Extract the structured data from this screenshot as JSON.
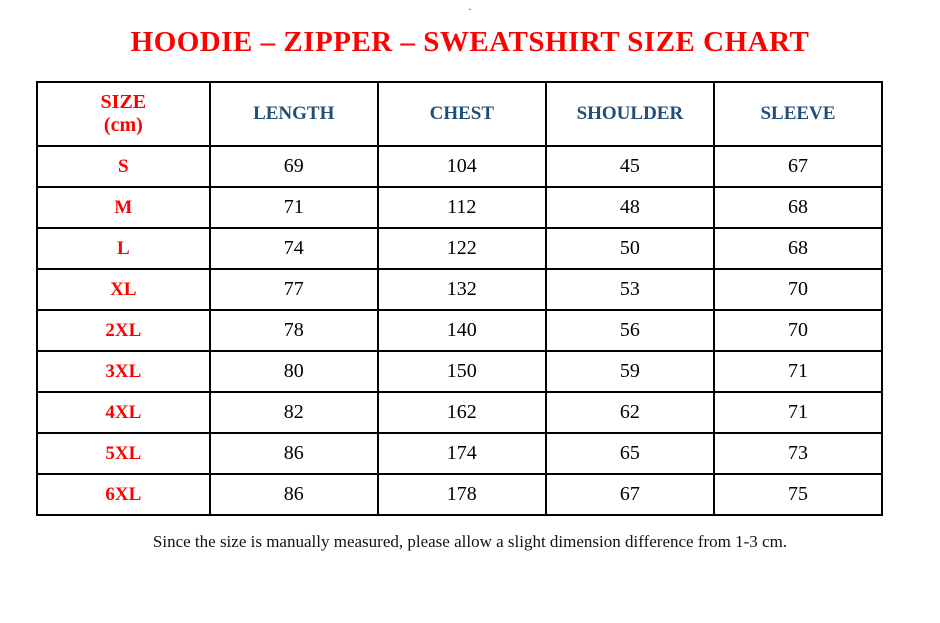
{
  "top_mark": ".",
  "title": "HOODIE – ZIPPER – SWEATSHIRT SIZE CHART",
  "table": {
    "header": {
      "size_label": "SIZE",
      "size_unit": "(cm)",
      "columns": [
        "LENGTH",
        "CHEST",
        "SHOULDER",
        "SLEEVE"
      ]
    },
    "rows": [
      {
        "size": "S",
        "values": [
          69,
          104,
          45,
          67
        ]
      },
      {
        "size": "M",
        "values": [
          71,
          112,
          48,
          68
        ]
      },
      {
        "size": "L",
        "values": [
          74,
          122,
          50,
          68
        ]
      },
      {
        "size": "XL",
        "values": [
          77,
          132,
          53,
          70
        ]
      },
      {
        "size": "2XL",
        "values": [
          78,
          140,
          56,
          70
        ]
      },
      {
        "size": "3XL",
        "values": [
          80,
          150,
          59,
          71
        ]
      },
      {
        "size": "4XL",
        "values": [
          82,
          162,
          62,
          71
        ]
      },
      {
        "size": "5XL",
        "values": [
          86,
          174,
          65,
          73
        ]
      },
      {
        "size": "6XL",
        "values": [
          86,
          178,
          67,
          75
        ]
      }
    ]
  },
  "footnote": "Since the size is manually measured, please allow a slight dimension difference from 1-3 cm.",
  "colors": {
    "title_red": "#FF0000",
    "header_blue": "#1F4E79",
    "size_red": "#FF0000",
    "value_black": "#000000",
    "border_black": "#000000",
    "background": "#FFFFFF"
  }
}
